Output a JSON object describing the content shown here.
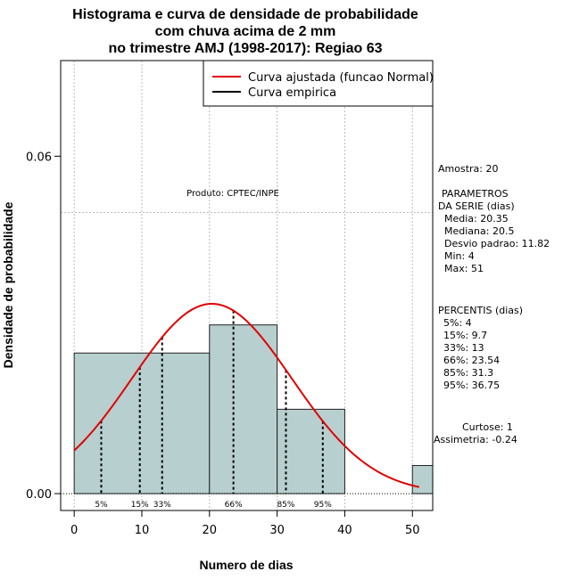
{
  "chart_data": {
    "type": "histogram",
    "title_lines": [
      "Histograma e curva de densidade de probabilidade",
      "com chuva acima de 2 mm",
      "no trimestre AMJ (1998-2017): Regiao 63"
    ],
    "xlabel": "Numero de dias",
    "ylabel": "Densidade de probabilidade",
    "xlim": [
      -2,
      53
    ],
    "ylim": [
      -0.003,
      0.077
    ],
    "x_ticks": [
      0,
      10,
      20,
      30,
      40,
      50
    ],
    "x_tick_labels": [
      "0",
      "10",
      "20",
      "30",
      "40",
      "50"
    ],
    "y_ticks": [
      0.0,
      0.06
    ],
    "y_tick_labels": [
      "0.00",
      "0.06"
    ],
    "grid_x": [
      0,
      10,
      20,
      30,
      40,
      50
    ],
    "grid_y": [
      0.05
    ],
    "bins": [
      {
        "start": 0,
        "end": 20,
        "density": 0.025
      },
      {
        "start": 20,
        "end": 30,
        "density": 0.03
      },
      {
        "start": 30,
        "end": 40,
        "density": 0.015
      },
      {
        "start": 50,
        "end": 60,
        "density": 0.005
      }
    ],
    "bar_color": "#b7cfcf",
    "fitted_curve": {
      "mean": 20.35,
      "sd": 11.82,
      "x_range": [
        0,
        51
      ],
      "color": "#e00000"
    },
    "legend": [
      "Curva ajustada (funcao Normal)",
      "Curva empirica"
    ],
    "legend_colors": [
      "#e00000",
      "#000000"
    ],
    "percentiles": [
      {
        "label": "5%",
        "value": 4
      },
      {
        "label": "15%",
        "value": 9.7
      },
      {
        "label": "33%",
        "value": 13
      },
      {
        "label": "66%",
        "value": 23.54
      },
      {
        "label": "85%",
        "value": 31.3
      },
      {
        "label": "95%",
        "value": 36.75
      }
    ],
    "produto": "Produto: CPTEC/INPE"
  },
  "side_panel": {
    "amostra": "Amostra: 20",
    "params_title_1": "PARAMETROS",
    "params_title_2": "DA SERIE (dias)",
    "params": [
      "Media: 20.35",
      "Mediana: 20.5",
      "Desvio padrao: 11.82",
      "Min: 4",
      "Max: 51"
    ],
    "percentis_title": "PERCENTIS (dias)",
    "percentis": [
      "5%: 4",
      "15%: 9.7",
      "33%: 13",
      "66%: 23.54",
      "85%: 31.3",
      "95%: 36.75"
    ],
    "curtose": "Curtose: 1",
    "assimetria": "Assimetria: -0.24"
  }
}
